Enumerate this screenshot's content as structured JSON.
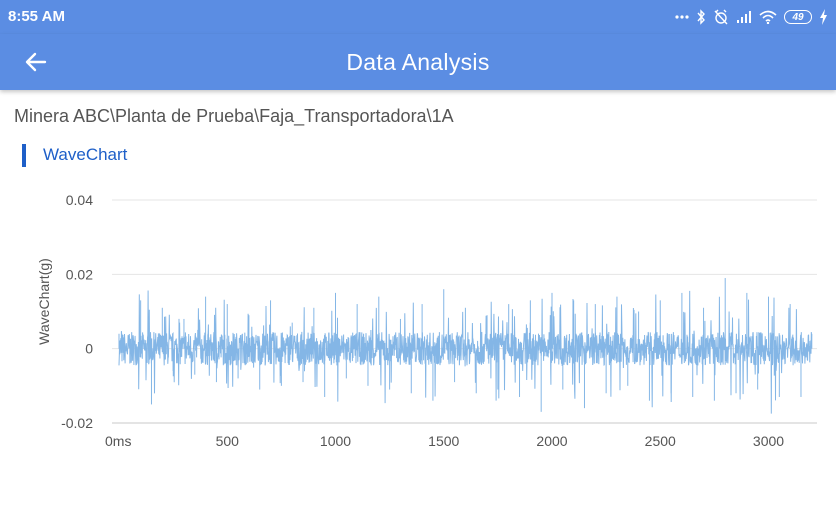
{
  "status_bar": {
    "time": "8:55 AM",
    "battery": "49"
  },
  "app_bar": {
    "title": "Data Analysis",
    "back_icon": "arrow-left-icon"
  },
  "breadcrumb": "Minera ABC\\Planta de Prueba\\Faja_Transportadora\\1A",
  "section_title": "WaveChart",
  "chart_data": {
    "type": "line",
    "title": "",
    "xlabel": "",
    "ylabel": "WaveChart(g)",
    "x_tick_labels": [
      "0ms",
      "500",
      "1000",
      "1500",
      "2000",
      "2500",
      "3000"
    ],
    "x_ticks": [
      0,
      500,
      1000,
      1500,
      2000,
      2500,
      3000
    ],
    "y_tick_labels": [
      "0.04",
      "0.02",
      "0",
      "-0.02"
    ],
    "y_ticks": [
      0.04,
      0.02,
      0,
      -0.02
    ],
    "xlim": [
      0,
      3200
    ],
    "ylim": [
      -0.02,
      0.04
    ],
    "grid": true,
    "series_color": "#84b6e6",
    "series": [
      {
        "x": [
          0,
          50,
          100,
          150,
          200,
          250,
          300,
          350,
          400,
          450,
          500,
          550,
          600,
          650,
          700,
          750,
          800,
          850,
          900,
          950,
          1000,
          1050,
          1100,
          1150,
          1200,
          1250,
          1300,
          1350,
          1400,
          1450,
          1500,
          1550,
          1600,
          1650,
          1700,
          1750,
          1800,
          1850,
          1900,
          1950,
          2000,
          2050,
          2100,
          2150,
          2200,
          2250,
          2300,
          2350,
          2400,
          2450,
          2500,
          2550,
          2600,
          2650,
          2700,
          2750,
          2800,
          2850,
          2900,
          2950,
          3000,
          3050,
          3100,
          3150,
          3200
        ],
        "y": [
          0.004,
          -0.004,
          0.013,
          -0.015,
          0.011,
          -0.006,
          0.008,
          -0.007,
          0.014,
          -0.009,
          0.012,
          -0.008,
          0.009,
          -0.011,
          0.013,
          -0.01,
          0.007,
          -0.009,
          0.011,
          -0.013,
          0.015,
          -0.008,
          0.012,
          -0.01,
          0.014,
          -0.011,
          0.008,
          -0.012,
          0.012,
          -0.014,
          0.016,
          -0.009,
          0.011,
          -0.012,
          0.009,
          -0.011,
          0.012,
          -0.013,
          0.013,
          -0.017,
          0.015,
          -0.011,
          0.013,
          -0.016,
          0.012,
          -0.012,
          0.014,
          -0.01,
          0.01,
          -0.014,
          0.013,
          -0.012,
          0.015,
          -0.013,
          0.011,
          -0.014,
          0.019,
          -0.012,
          0.015,
          -0.011,
          0.014,
          -0.013,
          0.012,
          -0.013,
          0.004
        ]
      }
    ]
  }
}
